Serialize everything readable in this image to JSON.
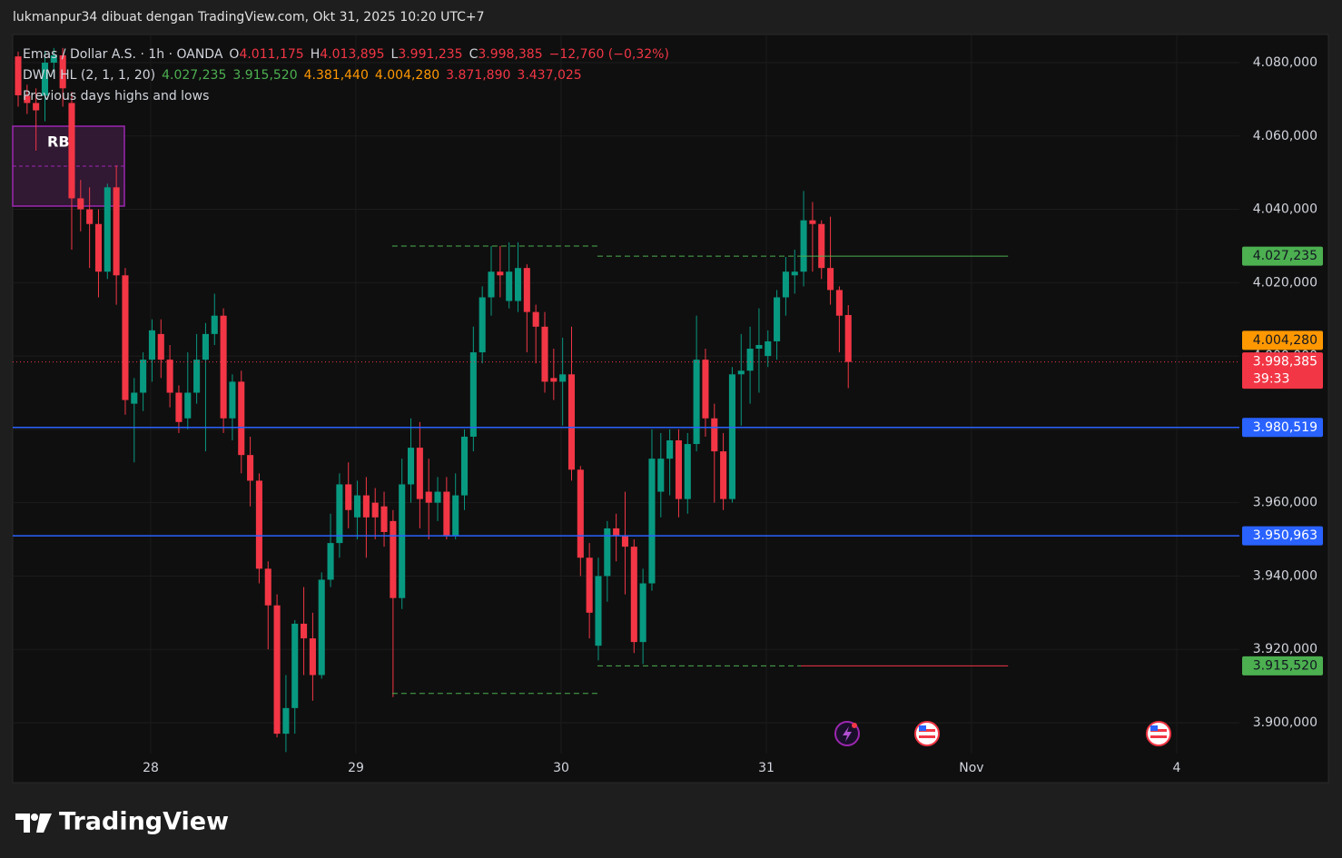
{
  "header": "lukmanpur34 dibuat dengan TradingView.com, Okt 31, 2025 10:20 UTC+7",
  "footer": "TradingView",
  "chart_data": {
    "type": "candlestick",
    "legend": {
      "symbol": "Emas / Dollar A.S. · 1h · OANDA",
      "ohlc": [
        {
          "key": "O",
          "value": "4.011,175"
        },
        {
          "key": "H",
          "value": "4.013,895"
        },
        {
          "key": "L",
          "value": "3.991,235"
        },
        {
          "key": "C",
          "value": "3.998,385"
        }
      ],
      "change": "−12,760 (−0,32%)",
      "ohlc_color": "#f23645",
      "indicator": "DWM HL (2, 1, 1, 20)",
      "indicator_values": [
        {
          "text": "4.027,235",
          "color": "#4caf50"
        },
        {
          "text": "3.915,520",
          "color": "#4caf50"
        },
        {
          "text": "4.381,440",
          "color": "#ff9800"
        },
        {
          "text": "4.004,280",
          "color": "#ff9800"
        },
        {
          "text": "3.871,890",
          "color": "#f23645"
        },
        {
          "text": "3.437,025",
          "color": "#f23645"
        }
      ],
      "note": "Previous days highs and lows"
    },
    "zone_label": "RB",
    "up_color": "#089981",
    "down_color": "#f23645",
    "open": [
      4081.7,
      4071,
      4069,
      4071,
      4080,
      4082,
      4069,
      4043,
      4040,
      4036,
      4023,
      4046,
      4022,
      3987,
      3990,
      3999,
      4006,
      3999,
      3990,
      3983,
      3990,
      3999,
      4006,
      4011,
      3983,
      3993,
      3973,
      3966,
      3942,
      3932,
      3897,
      3904,
      3927,
      3923,
      3913,
      3939,
      3949,
      3965,
      3956,
      3962,
      3960,
      3959,
      3955,
      3934,
      3965,
      3975,
      3963,
      3960,
      3963,
      3951,
      3962,
      3978,
      4001,
      4016,
      4023,
      4015,
      4015,
      4024,
      4012,
      4008,
      3994,
      3993,
      3995,
      3969,
      3945,
      3921,
      3940,
      3953,
      3951,
      3948,
      3922,
      3938,
      3963,
      3972,
      3977,
      3961,
      3976,
      3999,
      3983,
      3974,
      3961,
      3995,
      3996,
      4002,
      4000,
      4004,
      4016,
      4022,
      4023,
      4037,
      4036,
      4024,
      4018,
      4011.175
    ],
    "high": [
      4083,
      4074,
      4073,
      4083,
      4084,
      4084,
      4072,
      4048,
      4046,
      4040,
      4047,
      4052,
      4024,
      3994,
      4001,
      4010,
      4010,
      4003,
      3992,
      4001,
      4006,
      4009,
      4017,
      4013,
      3995,
      3996,
      3978,
      3968,
      3944,
      3935,
      3913,
      3928,
      3937,
      3930,
      3941,
      3957,
      3968,
      3971,
      3966,
      3967,
      3964,
      3963,
      3958,
      3972,
      3983,
      3982,
      3972,
      3967,
      3967,
      3968,
      3980,
      4008,
      4019,
      4030,
      4030,
      4031,
      4031,
      4025,
      4014,
      4012,
      4002,
      4005,
      4008,
      3970,
      3949,
      3945,
      3955,
      3957,
      3963,
      3950,
      3942,
      3980,
      3979,
      3980,
      3980,
      3979,
      4011,
      4002,
      3987,
      3979,
      3997,
      4006,
      4008,
      4013,
      4007,
      4018,
      4027,
      4029,
      4045,
      4042,
      4037,
      4038,
      4019,
      4013.895
    ],
    "low": [
      4068,
      4066,
      4056,
      4064,
      4076,
      4068,
      4029,
      4034,
      4024,
      4016,
      4021,
      4014,
      3984,
      3971,
      3985,
      3993,
      3994,
      3986,
      3979,
      3980,
      3987,
      3974,
      4003,
      3979,
      3977,
      3968,
      3959,
      3938,
      3920,
      3896,
      3892,
      3897,
      3913,
      3906,
      3912,
      3937,
      3945,
      3953,
      3950,
      3945,
      3950,
      3948,
      3907,
      3931,
      3960,
      3953,
      3950,
      3955,
      3950,
      3950,
      3958,
      3974,
      3998,
      4011,
      4016,
      4013,
      4012,
      4001,
      3998,
      3990,
      3988,
      3981,
      3966,
      3940,
      3923,
      3917,
      3933,
      3944,
      3935,
      3919,
      3916,
      3936,
      3956,
      3962,
      3956,
      3957,
      3974,
      3978,
      3960,
      3958,
      3960,
      3981,
      3987,
      3990,
      3997,
      3999,
      4011,
      4017,
      4019,
      4023,
      4021,
      4014,
      4001,
      3991.235
    ],
    "close": [
      4071.1,
      4069,
      4067,
      4080,
      4082,
      4073,
      4043,
      4040,
      4036,
      4023,
      4046,
      4022,
      3988,
      3990,
      3999,
      4007,
      3999,
      3990,
      3982,
      3990,
      3999,
      4006,
      4011,
      3983,
      3993,
      3973,
      3966,
      3942,
      3932,
      3897,
      3904,
      3927,
      3923,
      3913,
      3939,
      3949,
      3965,
      3958,
      3962,
      3956,
      3956,
      3952,
      3934,
      3965,
      3975,
      3961,
      3960,
      3963,
      3951,
      3962,
      3978,
      4001,
      4016,
      4023,
      4022,
      4023,
      4024,
      4012,
      4008,
      3993,
      3993,
      3995,
      3969,
      3945,
      3930,
      3940,
      3953,
      3951,
      3948,
      3922,
      3938,
      3972,
      3972,
      3977,
      3961,
      3976,
      3999,
      3983,
      3974,
      3961,
      3995,
      3996,
      4002,
      4003,
      4004,
      4016,
      4023,
      4023,
      4037,
      4036,
      4024,
      4018,
      4011,
      3998.385
    ],
    "xlim": [
      -0.61,
      136.82
    ],
    "xticks": [
      {
        "value": 14.85,
        "label": "28"
      },
      {
        "value": 37.84,
        "label": "29"
      },
      {
        "value": 60.83,
        "label": "30"
      },
      {
        "value": 83.82,
        "label": "31"
      },
      {
        "value": 106.8,
        "label": "Nov"
      },
      {
        "value": 129.8,
        "label": "4"
      }
    ],
    "ylim": [
      3891.582,
      4087.675
    ],
    "yticks": [
      {
        "value": 3900,
        "label": "3.900,000"
      },
      {
        "value": 3920,
        "label": "3.920,000"
      },
      {
        "value": 3940,
        "label": "3.940,000"
      },
      {
        "value": 3960,
        "label": "3.960,000"
      },
      {
        "value": 3980,
        "label": "3.980,000"
      },
      {
        "value": 4000,
        "label": "4.000,000"
      },
      {
        "value": 4020,
        "label": "4.020,000"
      },
      {
        "value": 4040,
        "label": "4.040,000"
      },
      {
        "value": 4060,
        "label": "4.060,000"
      },
      {
        "value": 4080,
        "label": "4.080,000"
      }
    ],
    "grid": true,
    "levels": [
      {
        "value": 4030,
        "color": "#4caf50",
        "style": "dashed",
        "from": 41.9,
        "to": 64.9
      },
      {
        "value": 3908,
        "color": "#4caf50",
        "style": "dashed",
        "from": 41.9,
        "to": 64.9
      },
      {
        "value": 4027.235,
        "color": "#4caf50",
        "style": "dashed",
        "from": 64.9,
        "to": 87.7
      },
      {
        "value": 4027.235,
        "color": "#4caf50",
        "style": "solid",
        "from": 87.7,
        "to": 110.9
      },
      {
        "value": 3915.52,
        "color": "#4caf50",
        "style": "dashed",
        "from": 64.9,
        "to": 87.7
      },
      {
        "value": 3915.52,
        "color": "#f23645",
        "style": "solid",
        "from": 87.7,
        "to": 110.9
      },
      {
        "value": 3980.519,
        "color": "#2962ff",
        "style": "solid"
      },
      {
        "value": 3950.963,
        "color": "#2962ff",
        "style": "solid"
      },
      {
        "value": 3998.385,
        "color": "#f23645",
        "style": "dotted"
      }
    ],
    "price_labels": [
      {
        "value": 4027.235,
        "label": "4.027,235",
        "bg": "#4caf50",
        "fg": "#131722"
      },
      {
        "value": 4004.28,
        "label": "4.004,280",
        "bg": "#ff9800",
        "fg": "#131722"
      },
      {
        "value": 3998.385,
        "label": "3.998,385",
        "countdown": "39:33",
        "bg": "#f23645",
        "fg": "#ffffff"
      },
      {
        "value": 3980.519,
        "label": "3.980,519",
        "bg": "#2962ff",
        "fg": "#ffffff"
      },
      {
        "value": 3950.963,
        "label": "3.950,963",
        "bg": "#2962ff",
        "fg": "#ffffff"
      },
      {
        "value": 3915.52,
        "label": "3.915,520",
        "bg": "#4caf50",
        "fg": "#131722"
      }
    ]
  }
}
